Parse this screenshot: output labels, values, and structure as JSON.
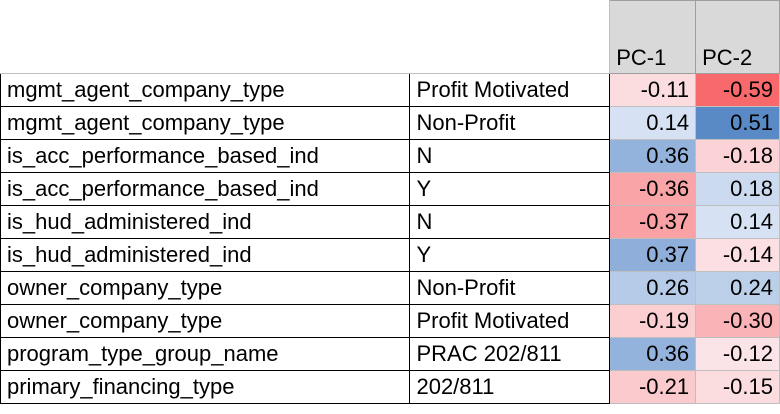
{
  "headers": {
    "pc1": "PC-1",
    "pc2": "PC-2"
  },
  "rows": [
    {
      "name": "mgmt_agent_company_type",
      "value": "Profit Motivated",
      "pc1": "-0.11",
      "pc2": "-0.59",
      "pc1_color": "#fbdde0",
      "pc2_color": "#f8696b"
    },
    {
      "name": "mgmt_agent_company_type",
      "value": "Non-Profit",
      "pc1": "0.14",
      "pc2": "0.51",
      "pc1_color": "#d6e2f3",
      "pc2_color": "#5a8ac6"
    },
    {
      "name": "is_acc_performance_based_ind",
      "value": "N",
      "pc1": "0.36",
      "pc2": "-0.18",
      "pc1_color": "#93b3dd",
      "pc2_color": "#fbd2d5"
    },
    {
      "name": "is_acc_performance_based_ind",
      "value": "Y",
      "pc1": "-0.36",
      "pc2": "0.18",
      "pc1_color": "#f9a5a8",
      "pc2_color": "#cbdaef"
    },
    {
      "name": "is_hud_administered_ind",
      "value": "N",
      "pc1": "-0.37",
      "pc2": "0.14",
      "pc1_color": "#f9a1a4",
      "pc2_color": "#d6e2f3"
    },
    {
      "name": "is_hud_administered_ind",
      "value": "Y",
      "pc1": "0.37",
      "pc2": "-0.14",
      "pc1_color": "#8faed9",
      "pc2_color": "#fbdfe2"
    },
    {
      "name": "owner_company_type",
      "value": "Non-Profit",
      "pc1": "0.26",
      "pc2": "0.24",
      "pc1_color": "#b5cbe8",
      "pc2_color": "#bccfe9"
    },
    {
      "name": "owner_company_type",
      "value": "Profit Motivated",
      "pc1": "-0.19",
      "pc2": "-0.30",
      "pc1_color": "#fbcfd2",
      "pc2_color": "#fab4b7"
    },
    {
      "name": "program_type_group_name",
      "value": "PRAC 202/811",
      "pc1": "0.36",
      "pc2": "-0.12",
      "pc1_color": "#93b3dd",
      "pc2_color": "#fbe4e7"
    },
    {
      "name": "primary_financing_type",
      "value": "202/811",
      "pc1": "-0.21",
      "pc2": "-0.15",
      "pc1_color": "#fbcacd",
      "pc2_color": "#fbdcdf"
    }
  ]
}
